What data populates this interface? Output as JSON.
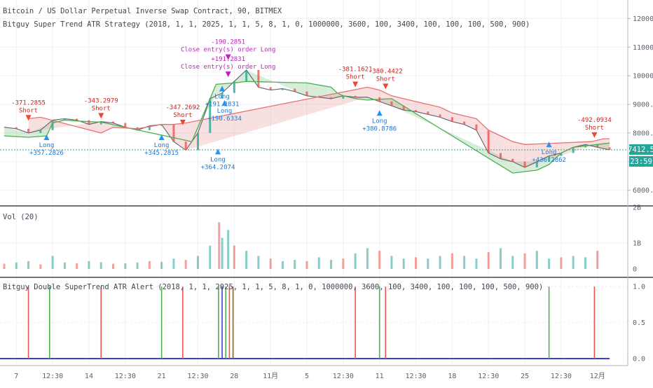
{
  "header": {
    "title": "Bitcoin / US Dollar Perpetual Inverse Swap Contract, 90, BITMEX",
    "strategy": "Bitguy Super Trend ATR Strategy (2018, 1, 1, 2025, 1, 1, 5, 8, 1, 0, 1000000, 3600, 100, 3400, 100, 100, 100, 500, 900)"
  },
  "price_badges": {
    "last": "7412.5",
    "countdown": "23:59"
  },
  "volume_pane": {
    "title": "Vol (20)"
  },
  "alert_pane": {
    "title": "Bitguy Double SuperTrend ATR Alert (2018, 1, 1, 2025, 1, 1, 5, 8, 1, 0, 1000000, 3600, 100, 3400, 100, 100, 100, 500, 900)"
  },
  "colors": {
    "up": "#26a69a",
    "down": "#ef5350",
    "trend_up": "#4caf50",
    "trend_down": "#e57373",
    "long_marker": "#2196f3",
    "short_marker": "#f44336",
    "close_marker": "#c020c0",
    "last_price": "#26a69a",
    "alert_base": "#3f3fd8",
    "grid": "#eef0f3",
    "axis_text": "#5d606b"
  },
  "chart_data": [
    {
      "type": "line",
      "name": "price",
      "x_ticks": [
        "7",
        "12:30",
        "14",
        "12:30",
        "21",
        "12:30",
        "28",
        "11月",
        "5",
        "12:30",
        "11",
        "12:30",
        "18",
        "12:30",
        "25",
        "12:30",
        "12月"
      ],
      "y_ticks": [
        "12000.0",
        "11000.0",
        "10000.0",
        "9000.0",
        "8000.0",
        "7000.0",
        "6000.0"
      ],
      "ylim": [
        5600,
        12500
      ],
      "x_range": [
        0,
        100
      ],
      "last_price": 7412.5,
      "x": [
        0,
        2,
        4,
        6,
        8,
        10,
        12,
        14,
        16,
        18,
        20,
        22,
        24,
        26,
        28,
        30,
        32,
        34,
        36,
        38,
        40,
        42,
        44,
        46,
        48,
        50,
        52,
        54,
        56,
        58,
        60,
        62,
        64,
        66,
        68,
        70,
        72,
        74,
        76,
        78,
        80,
        82,
        84,
        86,
        88,
        90,
        92,
        94,
        96,
        98,
        100
      ],
      "close": [
        8200,
        8150,
        8000,
        8100,
        8450,
        8500,
        8450,
        8300,
        8400,
        8350,
        8200,
        8100,
        8250,
        8300,
        7700,
        7400,
        8000,
        9200,
        9400,
        9800,
        10200,
        9600,
        9500,
        9550,
        9450,
        9300,
        9250,
        9200,
        9300,
        9250,
        9250,
        9100,
        8950,
        8800,
        8750,
        8650,
        8550,
        8400,
        8300,
        8100,
        7300,
        7100,
        7000,
        6800,
        7000,
        7200,
        7300,
        7500,
        7600,
        7500,
        7412
      ],
      "trend_up": [
        [
          0,
          7900
        ],
        [
          4,
          7850
        ],
        [
          7,
          7900
        ],
        [
          8,
          8350
        ],
        [
          10,
          8450
        ],
        [
          12,
          8420
        ],
        [
          14,
          8400
        ],
        [
          16,
          8380
        ],
        [
          31,
          7700
        ],
        [
          33,
          8700
        ],
        [
          35,
          9700
        ],
        [
          38,
          9750
        ],
        [
          40,
          9800
        ],
        [
          50,
          9750
        ],
        [
          54,
          9600
        ],
        [
          55,
          9400
        ],
        [
          56,
          9300
        ],
        [
          58,
          9200
        ],
        [
          60,
          9150
        ],
        [
          62,
          9180
        ],
        [
          64,
          9200
        ],
        [
          84,
          6600
        ],
        [
          88,
          6700
        ],
        [
          90,
          6900
        ],
        [
          92,
          7300
        ],
        [
          94,
          7500
        ],
        [
          96,
          7550
        ],
        [
          98,
          7600
        ],
        [
          100,
          7650
        ]
      ],
      "trend_down": [
        [
          4,
          8500
        ],
        [
          6,
          8550
        ],
        [
          16,
          8000
        ],
        [
          18,
          8200
        ],
        [
          22,
          8150
        ],
        [
          26,
          8300
        ],
        [
          28,
          8300
        ],
        [
          30,
          8350
        ],
        [
          60,
          9600
        ],
        [
          62,
          9500
        ],
        [
          64,
          9300
        ],
        [
          66,
          9200
        ],
        [
          68,
          9100
        ],
        [
          70,
          9000
        ],
        [
          72,
          8900
        ],
        [
          74,
          8700
        ],
        [
          76,
          8600
        ],
        [
          78,
          8500
        ],
        [
          80,
          8100
        ],
        [
          82,
          7900
        ],
        [
          84,
          7700
        ],
        [
          86,
          7600
        ],
        [
          97,
          7700
        ],
        [
          99,
          7800
        ],
        [
          100,
          7800
        ]
      ],
      "signals": [
        {
          "type": "Short",
          "x": 4,
          "price": 8480,
          "pnl": "-371.2855"
        },
        {
          "type": "Long",
          "x": 7,
          "price": 7900,
          "pnl": "+357.2826"
        },
        {
          "type": "Short",
          "x": 16,
          "price": 8550,
          "pnl": "-343.2979"
        },
        {
          "type": "Long",
          "x": 26,
          "price": 7900,
          "pnl": "+345.2815"
        },
        {
          "type": "Short",
          "x": 29.5,
          "price": 8320,
          "pnl": "-347.2692"
        },
        {
          "type": "Long",
          "x": 35.3,
          "price": 7400,
          "pnl": "+364.2074"
        },
        {
          "type": "Long",
          "x": 36,
          "price": 9600,
          "pnl": "+191.2831"
        },
        {
          "type": "Long",
          "x": 36.4,
          "price": 9100,
          "pnl": "+190.6334"
        },
        {
          "type": "Short",
          "x": 58,
          "price": 9650,
          "pnl": "-381.1621"
        },
        {
          "type": "Long",
          "x": 62,
          "price": 8750,
          "pnl": "+380.8786"
        },
        {
          "type": "Short",
          "x": 63,
          "price": 9580,
          "pnl": "-380.4422"
        },
        {
          "type": "Long",
          "x": 90,
          "price": 7650,
          "pnl": "+436.2862"
        },
        {
          "type": "Short",
          "x": 97.5,
          "price": 7880,
          "pnl": "-492.0934"
        }
      ],
      "close_entries": [
        {
          "x": 37,
          "price": 10600,
          "label": "Close entry(s) order Long",
          "pnl": "-190.2851"
        },
        {
          "x": 37,
          "price": 10000,
          "label": "Close entry(s) order Long",
          "pnl": "+191.2831"
        }
      ]
    },
    {
      "type": "bar",
      "name": "Vol (20)",
      "y_ticks": [
        "2B",
        "1B",
        "0"
      ],
      "ylim": [
        0,
        2000000000
      ],
      "x": [
        0,
        2,
        4,
        6,
        8,
        10,
        12,
        14,
        16,
        18,
        20,
        22,
        24,
        26,
        28,
        30,
        32,
        34,
        35.5,
        36,
        37,
        38,
        40,
        42,
        44,
        46,
        48,
        50,
        52,
        54,
        56,
        58,
        60,
        62,
        64,
        66,
        68,
        70,
        72,
        74,
        76,
        78,
        80,
        82,
        84,
        86,
        88,
        90,
        92,
        94,
        96,
        98
      ],
      "values": [
        200000000,
        250000000,
        300000000,
        180000000,
        500000000,
        250000000,
        220000000,
        300000000,
        260000000,
        200000000,
        220000000,
        250000000,
        300000000,
        280000000,
        400000000,
        350000000,
        500000000,
        900000000,
        1800000000,
        1200000000,
        1500000000,
        900000000,
        700000000,
        500000000,
        400000000,
        300000000,
        350000000,
        300000000,
        450000000,
        350000000,
        400000000,
        600000000,
        800000000,
        700000000,
        500000000,
        400000000,
        450000000,
        400000000,
        500000000,
        600000000,
        500000000,
        400000000,
        650000000,
        800000000,
        500000000,
        600000000,
        700000000,
        400000000,
        450000000,
        500000000,
        450000000,
        700000000
      ]
    },
    {
      "type": "bar",
      "name": "alerts",
      "y_ticks": [
        "1.0",
        "0.5",
        "0.0"
      ],
      "ylim": [
        0,
        1.05
      ],
      "spikes": [
        {
          "x": 4,
          "value": 1.0,
          "kind": "sell"
        },
        {
          "x": 7.5,
          "value": 1.0,
          "kind": "buy"
        },
        {
          "x": 16,
          "value": 1.0,
          "kind": "sell"
        },
        {
          "x": 26,
          "value": 1.0,
          "kind": "buy"
        },
        {
          "x": 29.5,
          "value": 1.0,
          "kind": "sell"
        },
        {
          "x": 35.4,
          "value": 1.0,
          "kind": "buy"
        },
        {
          "x": 36,
          "value": 1.0,
          "kind": "base"
        },
        {
          "x": 36.6,
          "value": 1.0,
          "kind": "buy"
        },
        {
          "x": 37.2,
          "value": 1.0,
          "kind": "sell"
        },
        {
          "x": 37.8,
          "value": 1.0,
          "kind": "close"
        },
        {
          "x": 58,
          "value": 1.0,
          "kind": "sell"
        },
        {
          "x": 62,
          "value": 1.0,
          "kind": "buy"
        },
        {
          "x": 63,
          "value": 1.0,
          "kind": "sell"
        },
        {
          "x": 90,
          "value": 1.0,
          "kind": "buy"
        },
        {
          "x": 97.5,
          "value": 1.0,
          "kind": "sell"
        }
      ]
    }
  ]
}
